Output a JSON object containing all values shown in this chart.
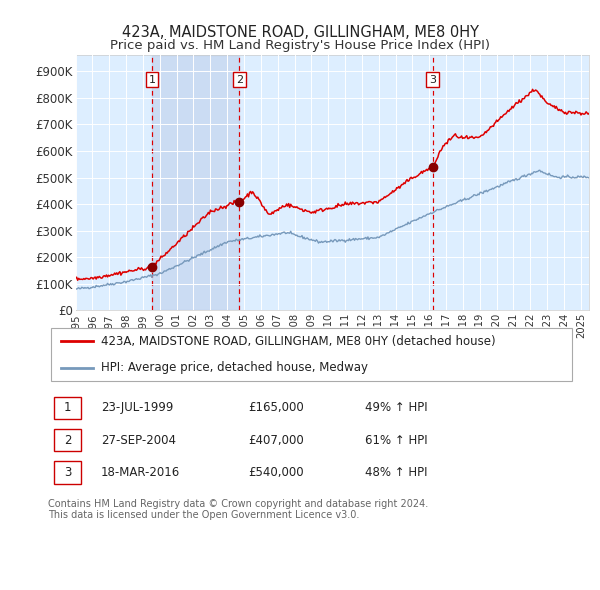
{
  "title": "423A, MAIDSTONE ROAD, GILLINGHAM, ME8 0HY",
  "subtitle": "Price paid vs. HM Land Registry's House Price Index (HPI)",
  "yticks": [
    0,
    100000,
    200000,
    300000,
    400000,
    500000,
    600000,
    700000,
    800000,
    900000
  ],
  "ytick_labels": [
    "£0",
    "£100K",
    "£200K",
    "£300K",
    "£400K",
    "£500K",
    "£600K",
    "£700K",
    "£800K",
    "£900K"
  ],
  "xmin": 1995.0,
  "xmax": 2025.5,
  "ymin": 0,
  "ymax": 960000,
  "plot_bg_color": "#ddeeff",
  "shade_color": "#ccddf0",
  "grid_color": "#ffffff",
  "red_line_color": "#dd0000",
  "blue_line_color": "#7799bb",
  "sale_marker_color": "#880000",
  "dashed_line_color": "#dd0000",
  "transactions": [
    {
      "label": "1",
      "date_dec": 1999.55,
      "price": 165000,
      "date_str": "23-JUL-1999",
      "pct": "49%",
      "dir": "↑"
    },
    {
      "label": "2",
      "date_dec": 2004.73,
      "price": 407000,
      "date_str": "27-SEP-2004",
      "pct": "61%",
      "dir": "↑"
    },
    {
      "label": "3",
      "date_dec": 2016.21,
      "price": 540000,
      "date_str": "18-MAR-2016",
      "pct": "48%",
      "dir": "↑"
    }
  ],
  "legend_line1": "423A, MAIDSTONE ROAD, GILLINGHAM, ME8 0HY (detached house)",
  "legend_line2": "HPI: Average price, detached house, Medway",
  "footer1": "Contains HM Land Registry data © Crown copyright and database right 2024.",
  "footer2": "This data is licensed under the Open Government Licence v3.0.",
  "title_fontsize": 10.5,
  "subtitle_fontsize": 9.5,
  "axis_fontsize": 8.5,
  "legend_fontsize": 8.5,
  "table_fontsize": 8.5,
  "footer_fontsize": 7.0
}
